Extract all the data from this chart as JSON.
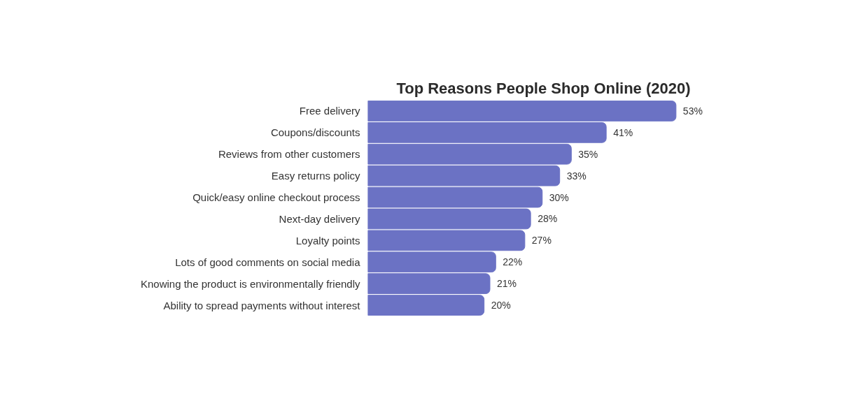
{
  "chart_data": {
    "type": "bar",
    "orientation": "horizontal",
    "title": "Top Reasons People Shop Online (2020)",
    "categories": [
      "Free delivery",
      "Coupons/discounts",
      "Reviews from other customers",
      "Easy returns policy",
      "Quick/easy online checkout process",
      "Next-day delivery",
      "Loyalty points",
      "Lots of good comments on social media",
      "Knowing the product is environmentally friendly",
      "Ability to spread payments without interest"
    ],
    "values": [
      53,
      41,
      35,
      33,
      30,
      28,
      27,
      22,
      21,
      20
    ],
    "value_labels": [
      "53%",
      "41%",
      "35%",
      "33%",
      "30%",
      "28%",
      "27%",
      "22%",
      "21%",
      "20%"
    ],
    "color": "#6b72c4",
    "tick_labels": false
  }
}
